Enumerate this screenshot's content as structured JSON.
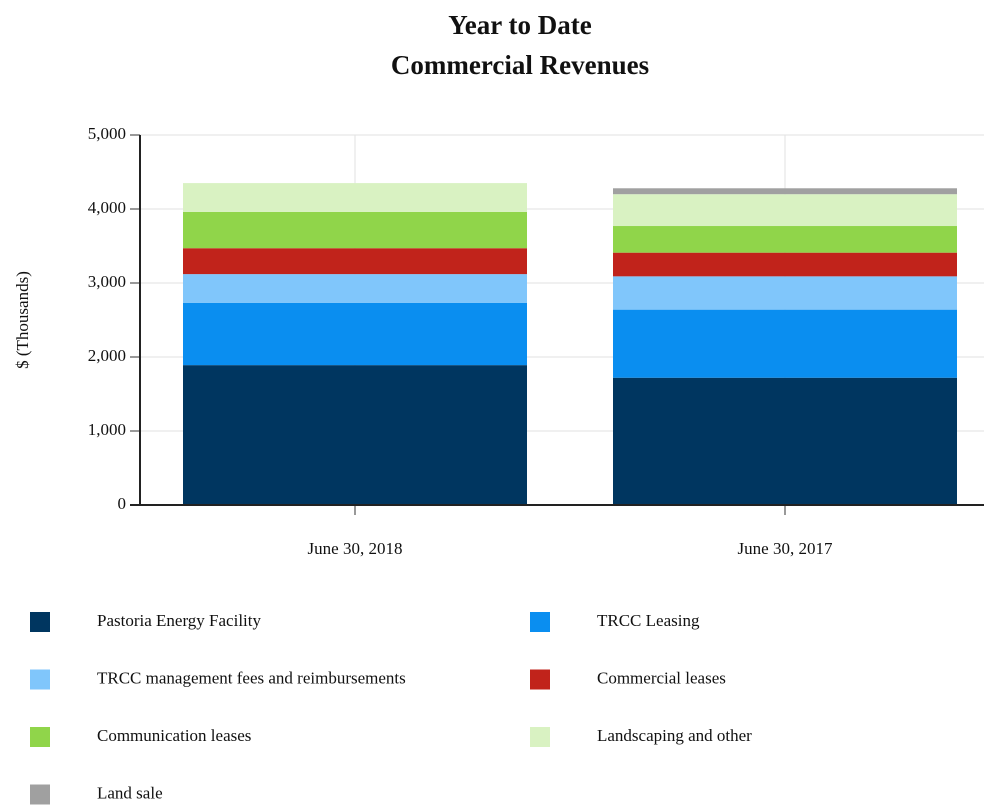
{
  "chart_data": {
    "type": "stacked_bar",
    "title": [
      "Year to Date",
      "Commercial Revenues"
    ],
    "y_label": "$ (Thousands)",
    "categories": [
      "June 30, 2018",
      "June 30, 2017"
    ],
    "series": [
      {
        "name": "Pastoria Energy Facility",
        "color": "#003660",
        "values": [
          1890,
          1720
        ]
      },
      {
        "name": "TRCC Leasing",
        "color": "#0a8ef0",
        "values": [
          840,
          920
        ]
      },
      {
        "name": "TRCC management fees and reimbursements",
        "color": "#80c6fb",
        "values": [
          390,
          450
        ]
      },
      {
        "name": "Commercial leases",
        "color": "#c1231b",
        "values": [
          350,
          320
        ]
      },
      {
        "name": "Communication leases",
        "color": "#90d54a",
        "values": [
          490,
          360
        ]
      },
      {
        "name": "Landscaping and other",
        "color": "#d9f2c2",
        "values": [
          390,
          430
        ]
      },
      {
        "name": "Land sale",
        "color": "#a0a0a0",
        "values": [
          0,
          80
        ]
      }
    ],
    "ylim": [
      0,
      5000
    ],
    "yticks": [
      0,
      {
        "value": 1000,
        "label": "1,000"
      },
      {
        "value": 2000,
        "label": "2,000"
      },
      {
        "value": 3000,
        "label": "3,000"
      },
      {
        "value": 4000,
        "label": "4,000"
      },
      {
        "value": 5000,
        "label": "5,000"
      }
    ],
    "grid": true
  }
}
